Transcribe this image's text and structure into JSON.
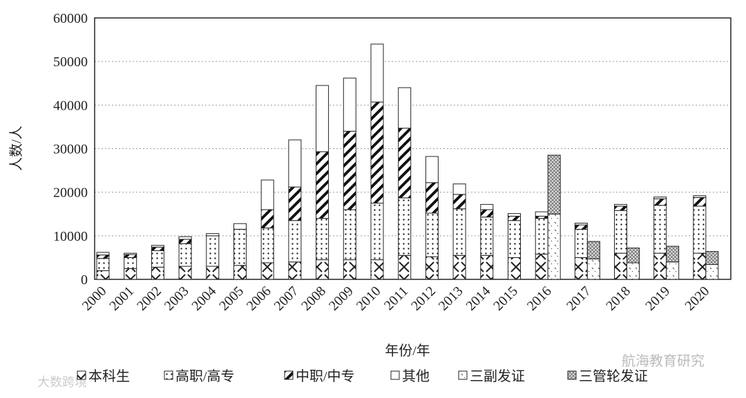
{
  "chart_data": {
    "type": "bar",
    "stacked": true,
    "y_label": "人数/人",
    "x_label": "年份/年",
    "categories": [
      "2000",
      "2001",
      "2002",
      "2003",
      "2004",
      "2005",
      "2006",
      "2007",
      "2008",
      "2009",
      "2010",
      "2011",
      "2012",
      "2013",
      "2014",
      "2015",
      "2016",
      "2017",
      "2018",
      "2019",
      "2020"
    ],
    "ylim": [
      0,
      60000
    ],
    "yticks": [
      0,
      10000,
      20000,
      30000,
      40000,
      50000,
      60000
    ],
    "grid": true,
    "series": [
      {
        "name": "本科生",
        "color": "#222",
        "pattern": "cross",
        "group": "left",
        "values": [
          2000,
          2500,
          2800,
          3000,
          3000,
          3200,
          3800,
          4000,
          4500,
          4500,
          4500,
          5500,
          5200,
          5500,
          5500,
          5000,
          5800,
          5000,
          6000,
          6000,
          6000
        ]
      },
      {
        "name": "高职/高专",
        "color": "#222",
        "pattern": "dots",
        "group": "left",
        "values": [
          2800,
          2500,
          3800,
          5200,
          7000,
          8300,
          8000,
          9500,
          9500,
          11500,
          13000,
          13200,
          10000,
          10700,
          8800,
          8500,
          8200,
          6500,
          9800,
          11000,
          10800
        ]
      },
      {
        "name": "中职/中专",
        "color": "#222",
        "pattern": "stripes",
        "group": "left",
        "values": [
          800,
          700,
          800,
          1000,
          0,
          0,
          4200,
          7700,
          15300,
          18000,
          23200,
          16000,
          7000,
          3300,
          1700,
          1000,
          500,
          1000,
          1000,
          1500,
          2000
        ]
      },
      {
        "name": "其他",
        "color": "#222",
        "pattern": "blank",
        "group": "left",
        "values": [
          600,
          300,
          400,
          600,
          500,
          1300,
          6800,
          10800,
          15200,
          12200,
          13300,
          9300,
          6000,
          2400,
          1200,
          600,
          1000,
          400,
          400,
          400,
          400
        ]
      },
      {
        "name": "三副发证",
        "color": "#222",
        "pattern": "sparse",
        "group": "right",
        "values": [
          null,
          null,
          null,
          null,
          null,
          null,
          null,
          null,
          null,
          null,
          null,
          null,
          null,
          null,
          null,
          null,
          15000,
          4700,
          3800,
          4000,
          3400
        ]
      },
      {
        "name": "三管轮发证",
        "color": "#222",
        "pattern": "hatch",
        "group": "right",
        "values": [
          null,
          null,
          null,
          null,
          null,
          null,
          null,
          null,
          null,
          null,
          null,
          null,
          null,
          null,
          null,
          null,
          13500,
          4000,
          3400,
          3600,
          3000
        ]
      }
    ],
    "watermarks": [
      "航海教育研究",
      "大数跨境"
    ]
  }
}
